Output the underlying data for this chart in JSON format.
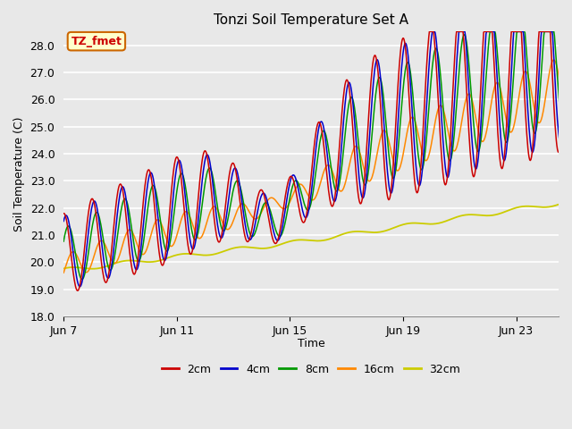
{
  "title": "Tonzi Soil Temperature Set A",
  "xlabel": "Time",
  "ylabel": "Soil Temperature (C)",
  "ylim": [
    18.0,
    28.5
  ],
  "yticks": [
    18.0,
    19.0,
    20.0,
    21.0,
    22.0,
    23.0,
    24.0,
    25.0,
    26.0,
    27.0,
    28.0
  ],
  "xtick_labels": [
    "Jun 7",
    "Jun 11",
    "Jun 15",
    "Jun 19",
    "Jun 23"
  ],
  "xtick_pos": [
    0,
    4,
    8,
    12,
    16
  ],
  "n_days": 18,
  "colors": {
    "2cm": "#cc0000",
    "4cm": "#0000cc",
    "8cm": "#009900",
    "16cm": "#ff8800",
    "32cm": "#cccc00"
  },
  "plot_bg_color": "#e8e8e8",
  "fig_bg_color": "#e8e8e8",
  "grid_color": "#ffffff",
  "annotation_text": "TZ_fmet",
  "annotation_bg": "#ffffcc",
  "annotation_border": "#cc6600",
  "annotation_text_color": "#cc0000",
  "legend_labels": [
    "2cm",
    "4cm",
    "8cm",
    "16cm",
    "32cm"
  ],
  "title_fontsize": 11,
  "label_fontsize": 9,
  "tick_fontsize": 9
}
